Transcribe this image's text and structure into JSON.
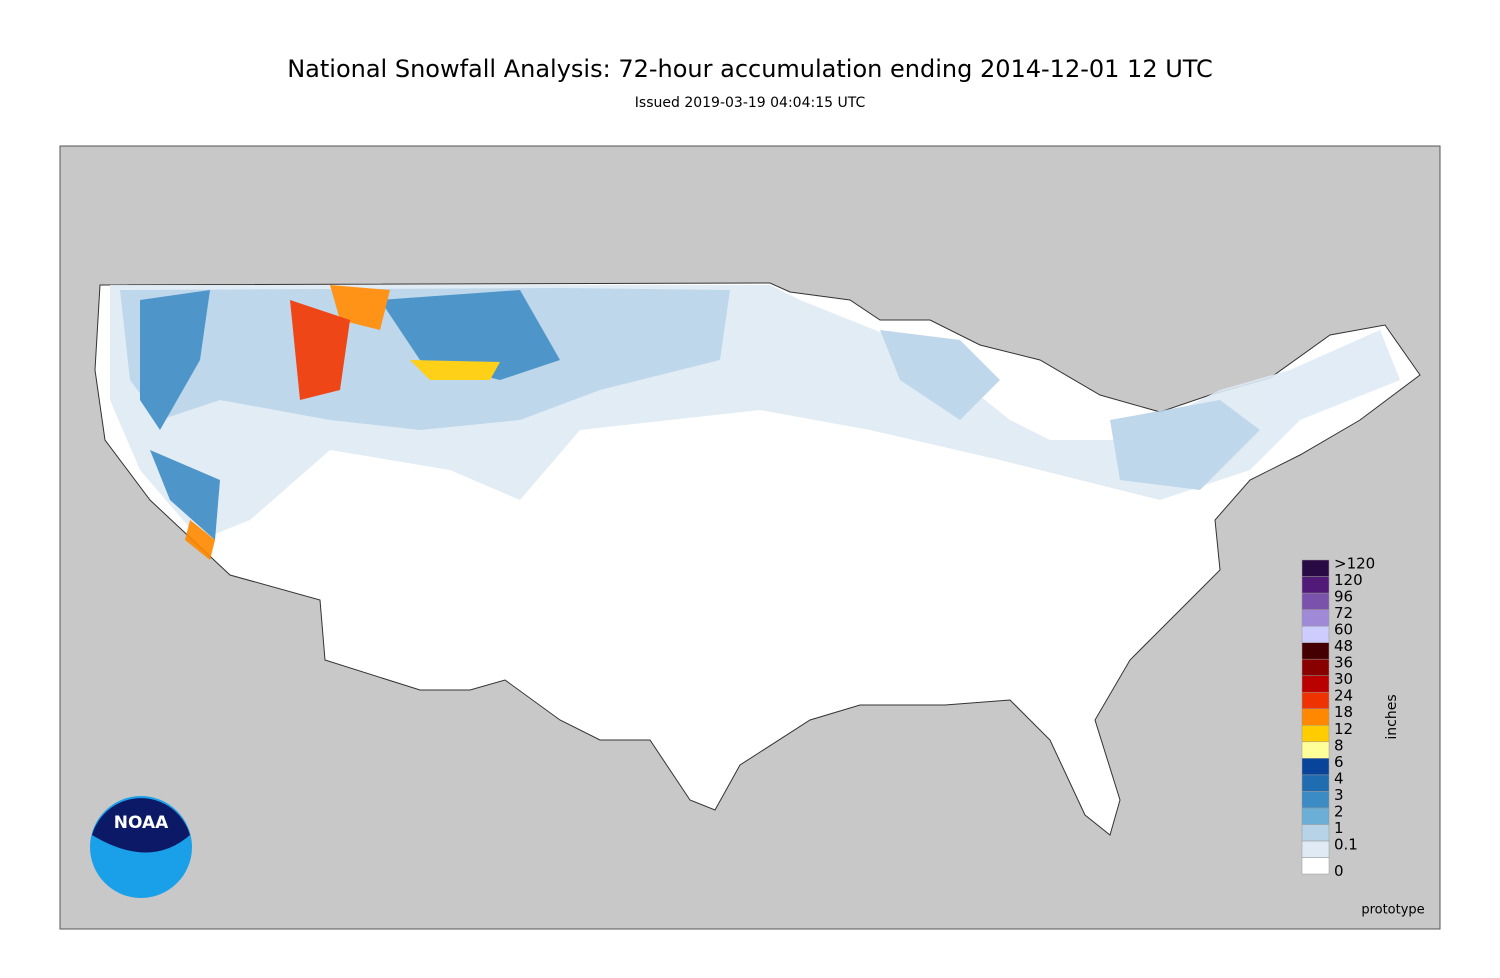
{
  "title": "National Snowfall Analysis: 72-hour accumulation ending 2014-12-01 12 UTC",
  "subtitle": "Issued 2019-03-19 04:04:15 UTC",
  "legend": {
    "title": "inches",
    "labels": [
      "0",
      "0.1",
      "1",
      "2",
      "3",
      "4",
      "6",
      "8",
      "12",
      "18",
      "24",
      "30",
      "36",
      "48",
      "60",
      "72",
      "96",
      "120",
      ">120"
    ],
    "colors": [
      "#ffffff",
      "#dfeaf5",
      "#b7d3e8",
      "#6baed6",
      "#3b8bc5",
      "#1f6cb0",
      "#08449a",
      "#ffff99",
      "#ffcc00",
      "#ff8800",
      "#ee3300",
      "#bb0000",
      "#880000",
      "#440000",
      "#ccccff",
      "#a08ad8",
      "#7b52ab",
      "#521a78",
      "#2a0a45"
    ]
  },
  "note": "prototype",
  "logo": "NOAA"
}
